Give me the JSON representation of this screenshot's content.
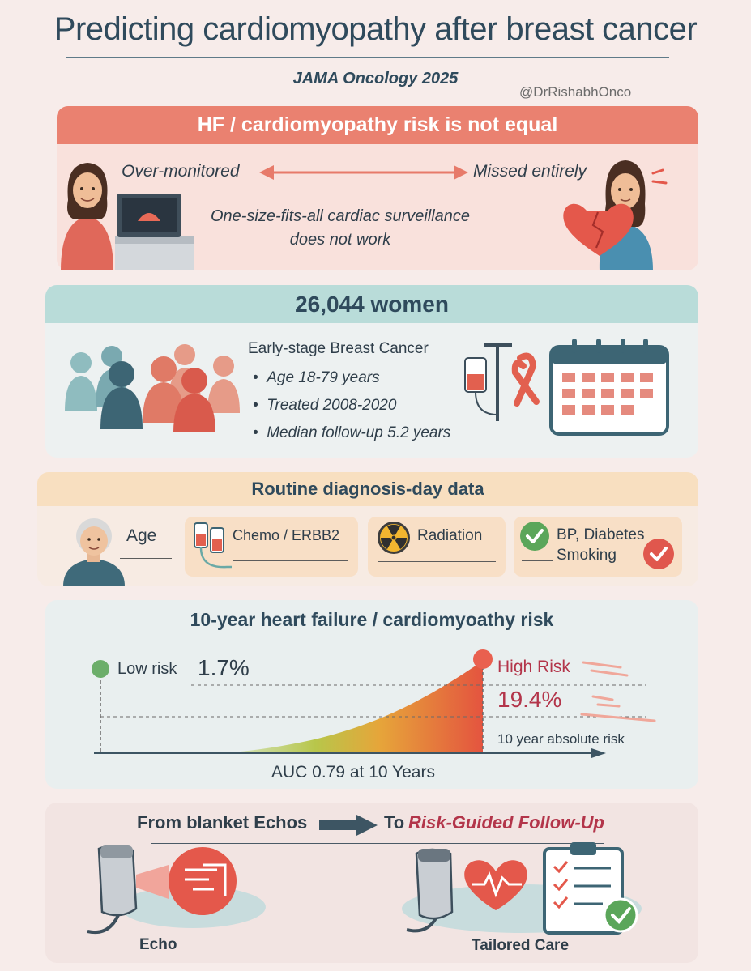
{
  "header": {
    "title": "Predicting cardiomyopathy after breast cancer",
    "journal": "JAMA Oncology 2025",
    "handle": "@DrRishabhOnco"
  },
  "section1": {
    "heading": "HF / cardiomyopathy risk is not equal",
    "left_label": "Over-monitored",
    "right_label": "Missed entirely",
    "message_line1": "One-size-fits-all cardiac surveillance",
    "message_line2": "does not work",
    "icons": [
      "woman-echo-icon",
      "double-arrow-icon",
      "woman-broken-heart-icon"
    ]
  },
  "section2": {
    "heading": "26,044 women",
    "subheading": "Early-stage Breast Cancer",
    "bullets": [
      "Age 18-79 years",
      "Treated 2008-2020",
      "Median follow-up 5.2 years"
    ],
    "icons": [
      "people-group-icon",
      "iv-drip-ribbon-icon",
      "calendar-icon"
    ]
  },
  "section3": {
    "heading": "Routine diagnosis-day data",
    "items": [
      {
        "label": "Age",
        "icon": "elderly-patient-icon"
      },
      {
        "label": "Chemo / ERBB2",
        "icon": "iv-bags-icon"
      },
      {
        "label": "Radiation",
        "icon": "radiation-icon"
      },
      {
        "label_line1": "BP, Diabetes",
        "label_line2": "Smoking",
        "icon": "check-icon"
      }
    ]
  },
  "section4": {
    "heading": "10-year heart failure / cardiomyoathy risk",
    "low_label": "Low risk",
    "low_value": "1.7%",
    "high_label": "High Risk",
    "high_value": "19.4%",
    "high_note": "10 year absolute risk",
    "auc": "AUC 0.79 at 10 Years",
    "colors": {
      "low": "#6cae6a",
      "high": "#e9604f"
    }
  },
  "section5": {
    "from_text": "From blanket Echos",
    "to_text": "To",
    "to_highlight": "Risk-Guided Follow-Up",
    "left_caption": "Echo",
    "right_caption": "Tailored Care",
    "icons": [
      "ultrasound-probe-icon",
      "echo-image-icon",
      "heartbeat-icon",
      "checklist-icon"
    ]
  }
}
